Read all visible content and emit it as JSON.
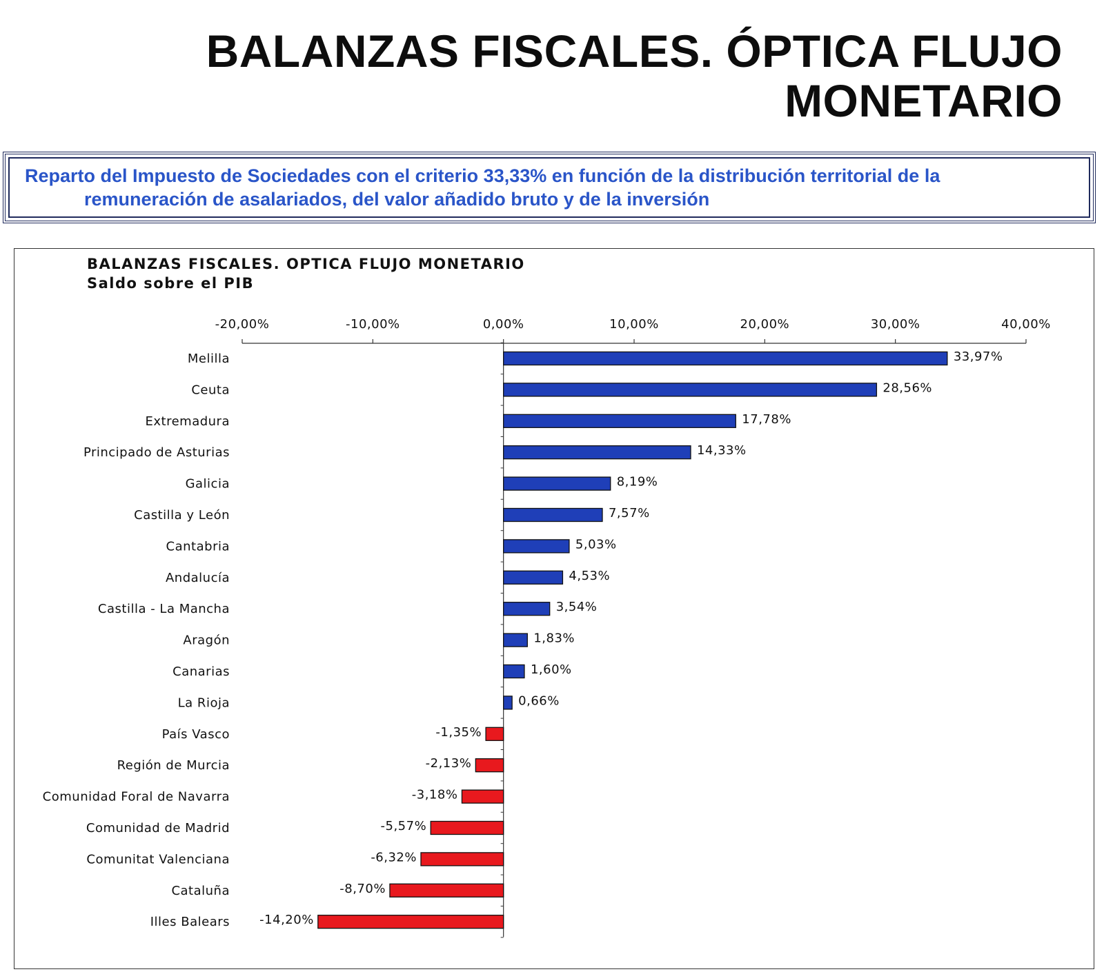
{
  "header": {
    "title_line1": "BALANZAS FISCALES. ÓPTICA FLUJO",
    "title_line2": "MONETARIO"
  },
  "subtitle": {
    "line1": "Reparto del Impuesto de Sociedades con el criterio 33,33% en función de la distribución territorial de la",
    "line2": "remuneración de asalariados, del valor añadido bruto y de la inversión"
  },
  "colors": {
    "positive": "#1f3fb8",
    "negative": "#e8191e",
    "subtitle_text": "#2a55c8",
    "frame": "#1f2a5c"
  },
  "chart_data": {
    "type": "bar",
    "orientation": "horizontal",
    "title": "BALANZAS FISCALES. OPTICA FLUJO MONETARIO",
    "subtitle": "Saldo sobre el PIB",
    "xlim": [
      -20,
      40
    ],
    "tick_values": [
      -20,
      -10,
      0,
      10,
      20,
      30,
      40
    ],
    "tick_labels": [
      "-20,00%",
      "-10,00%",
      "0,00%",
      "10,00%",
      "20,00%",
      "30,00%",
      "40,00%"
    ],
    "axis_position": "top",
    "grid": false,
    "categories": [
      "Melilla",
      "Ceuta",
      "Extremadura",
      "Principado de Asturias",
      "Galicia",
      "Castilla y León",
      "Cantabria",
      "Andalucía",
      "Castilla - La Mancha",
      "Aragón",
      "Canarias",
      "La Rioja",
      "País Vasco",
      "Región de Murcia",
      "Comunidad Foral de Navarra",
      "Comunidad de Madrid",
      "Comunitat Valenciana",
      "Cataluña",
      "Illes Balears"
    ],
    "values": [
      33.97,
      28.56,
      17.78,
      14.33,
      8.19,
      7.57,
      5.03,
      4.53,
      3.54,
      1.83,
      1.6,
      0.66,
      -1.35,
      -2.13,
      -3.18,
      -5.57,
      -6.32,
      -8.7,
      -14.2
    ],
    "value_labels": [
      "33,97%",
      "28,56%",
      "17,78%",
      "14,33%",
      "8,19%",
      "7,57%",
      "5,03%",
      "4,53%",
      "3,54%",
      "1,83%",
      "1,60%",
      "0,66%",
      "-1,35%",
      "-2,13%",
      "-3,18%",
      "-5,57%",
      "-6,32%",
      "-8,70%",
      "-14,20%"
    ]
  }
}
